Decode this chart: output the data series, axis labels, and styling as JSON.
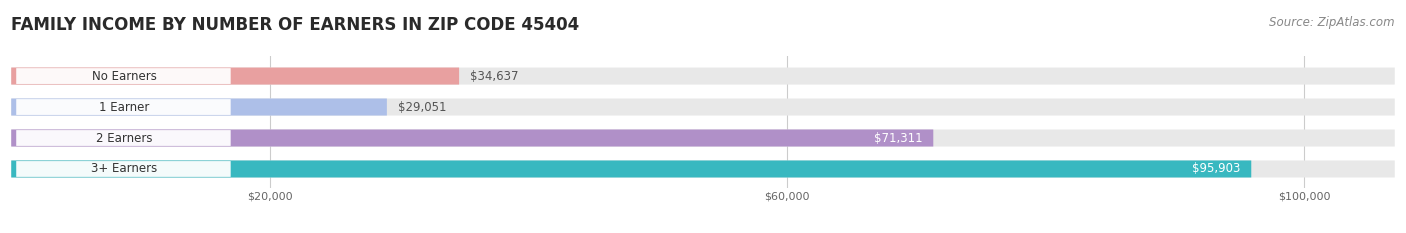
{
  "title": "FAMILY INCOME BY NUMBER OF EARNERS IN ZIP CODE 45404",
  "source": "Source: ZipAtlas.com",
  "categories": [
    "No Earners",
    "1 Earner",
    "2 Earners",
    "3+ Earners"
  ],
  "values": [
    34637,
    29051,
    71311,
    95903
  ],
  "bar_colors": [
    "#e8a0a0",
    "#adbfe8",
    "#b090c8",
    "#38b8c0"
  ],
  "value_labels": [
    "$34,637",
    "$29,051",
    "$71,311",
    "$95,903"
  ],
  "value_label_inside": [
    false,
    false,
    true,
    true
  ],
  "x_ticks": [
    20000,
    60000,
    100000
  ],
  "x_tick_labels": [
    "$20,000",
    "$60,000",
    "$100,000"
  ],
  "xlim_max": 107000,
  "background_color": "#ffffff",
  "bar_bg_color": "#e8e8e8",
  "row_bg_color": "#f0f0f0",
  "title_fontsize": 12,
  "source_fontsize": 8.5,
  "bar_fontsize": 8.5,
  "label_fontsize": 8.5
}
